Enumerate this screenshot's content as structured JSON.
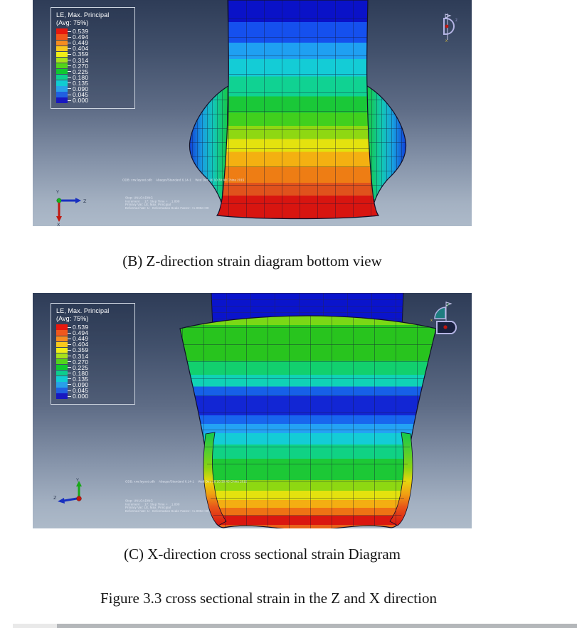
{
  "legend": {
    "title_line1": "LE, Max. Principal",
    "title_line2": "(Avg: 75%)",
    "entries": [
      {
        "value": "0.539",
        "color": "#e8180e"
      },
      {
        "value": "0.494",
        "color": "#f0571c"
      },
      {
        "value": "0.449",
        "color": "#f68c1f"
      },
      {
        "value": "0.404",
        "color": "#f8c81c"
      },
      {
        "value": "0.359",
        "color": "#f0ee16"
      },
      {
        "value": "0.314",
        "color": "#a8e21a"
      },
      {
        "value": "0.270",
        "color": "#52d41a"
      },
      {
        "value": "0.225",
        "color": "#0ec82e"
      },
      {
        "value": "0.180",
        "color": "#0cce8e"
      },
      {
        "value": "0.135",
        "color": "#10ccd2"
      },
      {
        "value": "0.090",
        "color": "#28a0e8"
      },
      {
        "value": "0.045",
        "color": "#2060e0"
      },
      {
        "value": "0.000",
        "color": "#1818c0"
      }
    ]
  },
  "figure_b": {
    "odb_line": "ODB: xrw.layout.odb    Abaqus/Standard 6.14-1    Wed Dec 16 10:30:40 China 2015",
    "step_lines": [
      "Step: UNLOADING",
      "Increment     17: Step Time =    1.000",
      "Primary Var: LE, Max. Principal",
      "Deformed Var: U   Deformation Scale Factor: +1.000e+00"
    ],
    "triad": {
      "up": "Y",
      "right": "Z",
      "down": "X"
    },
    "caption": "(B) Z-direction strain diagram bottom view"
  },
  "figure_c": {
    "odb_line": "ODB: xrw.layout.odb    Abaqus/Standard 6.14-1    Wed Dec 16 10:30:40 China 2015",
    "step_lines": [
      "Step: UNLOADING",
      "Increment     17: Step Time =    1.000",
      "Primary Var: LE, Max. Principal",
      "Deformed Var: U   Deformation Scale Factor: +1.000e+00"
    ],
    "triad": {
      "up": "Y",
      "left": "Z"
    },
    "caption": "(C) X-direction cross sectional strain Diagram"
  },
  "figure_caption": "Figure 3.3 cross sectional strain in the Z and X direction"
}
